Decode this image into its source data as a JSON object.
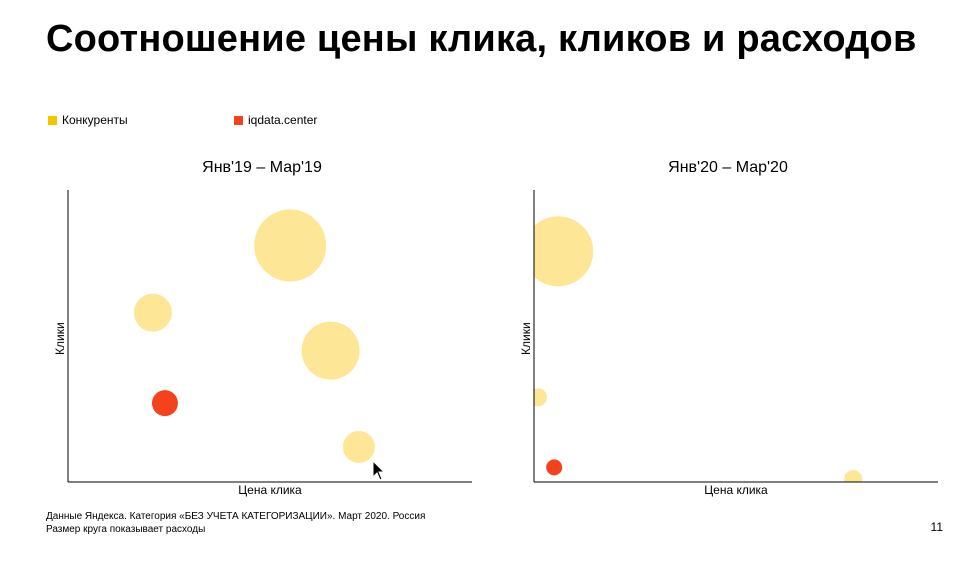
{
  "slide": {
    "title": "Соотношение цены клика, кликов и расходов",
    "footer_line1": "Данные Яндекса. Категория «БЕЗ УЧЕТА КАТЕГОРИЗАЦИИ». Март 2020. Россия",
    "footer_line2": "Размер круга показывает расходы",
    "page_number": "11"
  },
  "legend": [
    {
      "label": "Конкуренты",
      "color": "#f5c400"
    },
    {
      "label": "iqdata.center",
      "color": "#f4431c"
    }
  ],
  "colors": {
    "competitors": "#fde695",
    "iqdata": "#f4431c"
  },
  "chart_data": [
    {
      "type": "scatter",
      "title": "Янв'19 – Мар'19",
      "xlabel": "Цена клика",
      "ylabel": "Клики",
      "xlim": [
        0,
        100
      ],
      "ylim": [
        0,
        100
      ],
      "grid": false,
      "series": [
        {
          "name": "Конкуренты",
          "color": "#fde695",
          "points": [
            {
              "x": 55,
              "y": 81,
              "size": 36
            },
            {
              "x": 21,
              "y": 58,
              "size": 19
            },
            {
              "x": 65,
              "y": 45,
              "size": 29
            },
            {
              "x": 72,
              "y": 12,
              "size": 16
            }
          ]
        },
        {
          "name": "iqdata.center",
          "color": "#f4431c",
          "points": [
            {
              "x": 24,
              "y": 27,
              "size": 13
            }
          ]
        }
      ]
    },
    {
      "type": "scatter",
      "title": "Янв'20 – Мар'20",
      "xlabel": "Цена клика",
      "ylabel": "Клики",
      "xlim": [
        0,
        100
      ],
      "ylim": [
        0,
        100
      ],
      "grid": false,
      "series": [
        {
          "name": "Конкуренты",
          "color": "#fde695",
          "points": [
            {
              "x": 6,
              "y": 79,
              "size": 35
            },
            {
              "x": 1,
              "y": 29,
              "size": 9
            },
            {
              "x": 79,
              "y": 1,
              "size": 9
            }
          ]
        },
        {
          "name": "iqdata.center",
          "color": "#f4431c",
          "points": [
            {
              "x": 5,
              "y": 5,
              "size": 8
            }
          ]
        }
      ]
    }
  ]
}
